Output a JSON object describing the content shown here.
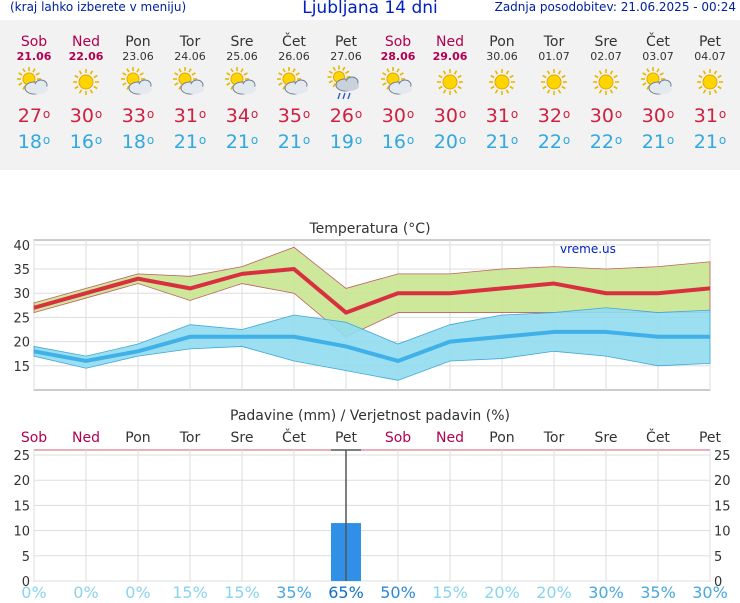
{
  "header": {
    "menu_hint": "(kraj lahko izberete v meniju)",
    "title": "Ljubljana 14 dni",
    "updated": "Zadnja posodobitev: 21.06.2025 - 00:24"
  },
  "days": [
    {
      "name": "Sob",
      "date": "21.06",
      "weekend": true,
      "icon": "sun-cloud-icon",
      "tmax": "27",
      "tmin": "18"
    },
    {
      "name": "Ned",
      "date": "22.06",
      "weekend": true,
      "icon": "sun-icon",
      "tmax": "30",
      "tmin": "16"
    },
    {
      "name": "Pon",
      "date": "23.06",
      "weekend": false,
      "icon": "sun-cloud-icon",
      "tmax": "33",
      "tmin": "18"
    },
    {
      "name": "Tor",
      "date": "24.06",
      "weekend": false,
      "icon": "sun-cloud-icon",
      "tmax": "31",
      "tmin": "21"
    },
    {
      "name": "Sre",
      "date": "25.06",
      "weekend": false,
      "icon": "sun-cloud-icon",
      "tmax": "34",
      "tmin": "21"
    },
    {
      "name": "Čet",
      "date": "26.06",
      "weekend": false,
      "icon": "sun-cloud-icon",
      "tmax": "35",
      "tmin": "21"
    },
    {
      "name": "Pet",
      "date": "27.06",
      "weekend": false,
      "icon": "sun-cloud-rain-icon",
      "tmax": "26",
      "tmin": "19"
    },
    {
      "name": "Sob",
      "date": "28.06",
      "weekend": true,
      "icon": "sun-cloud-icon",
      "tmax": "30",
      "tmin": "16"
    },
    {
      "name": "Ned",
      "date": "29.06",
      "weekend": true,
      "icon": "sun-icon",
      "tmax": "30",
      "tmin": "20"
    },
    {
      "name": "Pon",
      "date": "30.06",
      "weekend": false,
      "icon": "sun-icon",
      "tmax": "31",
      "tmin": "21"
    },
    {
      "name": "Tor",
      "date": "01.07",
      "weekend": false,
      "icon": "sun-icon",
      "tmax": "32",
      "tmin": "22"
    },
    {
      "name": "Sre",
      "date": "02.07",
      "weekend": false,
      "icon": "sun-icon",
      "tmax": "30",
      "tmin": "22"
    },
    {
      "name": "Čet",
      "date": "03.07",
      "weekend": false,
      "icon": "sun-cloud-icon",
      "tmax": "30",
      "tmin": "21"
    },
    {
      "name": "Pet",
      "date": "04.07",
      "weekend": false,
      "icon": "sun-icon",
      "tmax": "31",
      "tmin": "21"
    }
  ],
  "colors": {
    "weekend": "#b00050",
    "max_line": "#d83040",
    "min_line": "#40b0e8",
    "max_band": "#c8e490",
    "min_band": "#90dcef",
    "overlap_band": "#80c880",
    "precip_bar": "#3090e8",
    "title_blue": "#0020c0"
  },
  "chart_data": [
    {
      "type": "line",
      "title": "Temperatura (°C)",
      "watermark": "vreme.us",
      "ylim": [
        10,
        41
      ],
      "yticks": [
        15,
        20,
        25,
        30,
        35,
        40
      ],
      "grid": true,
      "series": [
        {
          "key": "max",
          "values": [
            27,
            30,
            33,
            31,
            34,
            35,
            26,
            30,
            30,
            31,
            32,
            30,
            30,
            31
          ]
        },
        {
          "key": "min",
          "values": [
            18,
            16,
            18,
            21,
            21,
            21,
            19,
            16,
            20,
            21,
            22,
            22,
            21,
            21
          ]
        }
      ],
      "max_band": {
        "upper": [
          28,
          31,
          34,
          33.5,
          35.5,
          39.5,
          31,
          34,
          34,
          35,
          35.5,
          35,
          35.5,
          36.5
        ],
        "lower": [
          26,
          29,
          32,
          28.5,
          32,
          30,
          21,
          26,
          26,
          26,
          26,
          26,
          26,
          26
        ]
      },
      "min_band": {
        "upper": [
          19,
          17,
          19.5,
          23.5,
          22.5,
          25.5,
          24,
          19.5,
          23.5,
          25.5,
          26,
          27,
          26,
          26.5
        ],
        "lower": [
          17,
          14.5,
          17,
          18.5,
          19,
          16,
          14,
          12,
          16,
          16.5,
          18,
          17,
          15,
          15.5
        ]
      }
    },
    {
      "type": "bar",
      "title": "Padavine (mm) / Verjetnost padavin (%)",
      "ylim": [
        0,
        26
      ],
      "yticks": [
        0,
        5,
        10,
        15,
        20,
        25
      ],
      "precip_mm": [
        0,
        0,
        0,
        0,
        0,
        0,
        11.5,
        0,
        0,
        0,
        0,
        0,
        0,
        0
      ],
      "precip_max_mm": [
        0,
        0,
        0,
        0,
        0,
        0,
        26,
        0,
        0,
        0,
        0,
        0,
        0,
        0
      ],
      "probability": [
        "0%",
        "0%",
        "0%",
        "15%",
        "15%",
        "35%",
        "65%",
        "50%",
        "15%",
        "20%",
        "20%",
        "30%",
        "35%",
        "30%"
      ]
    }
  ]
}
